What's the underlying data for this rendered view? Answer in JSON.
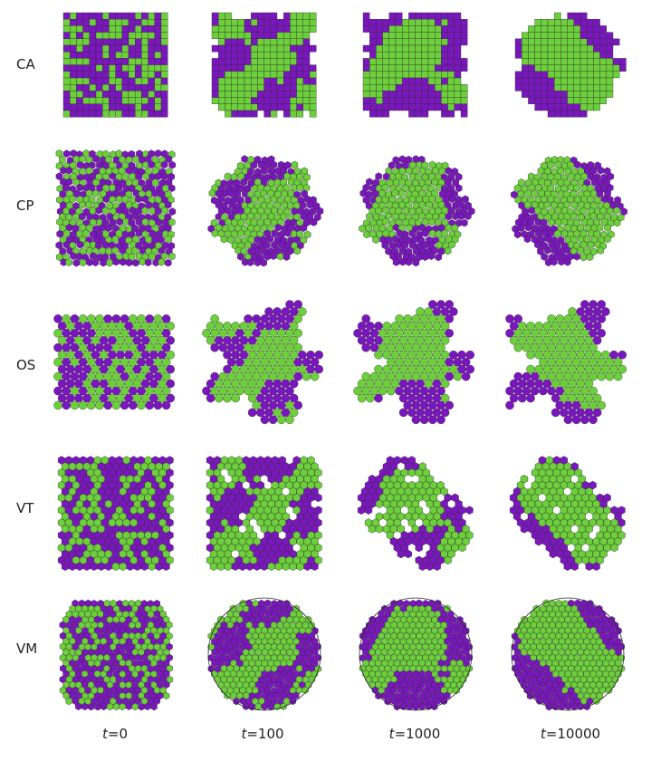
{
  "rows": [
    {
      "label": "CA"
    },
    {
      "label": "CP"
    },
    {
      "label": "OS"
    },
    {
      "label": "VT"
    },
    {
      "label": "VM"
    }
  ],
  "columns": [
    {
      "t": "t",
      "value": "=0"
    },
    {
      "t": "t",
      "value": "=100"
    },
    {
      "t": "t",
      "value": "=1000"
    },
    {
      "t": "t",
      "value": "=10000"
    }
  ],
  "colors": {
    "purple": "#7a16bd",
    "green": "#6ccf3b",
    "edge": "#2a2a2a"
  }
}
